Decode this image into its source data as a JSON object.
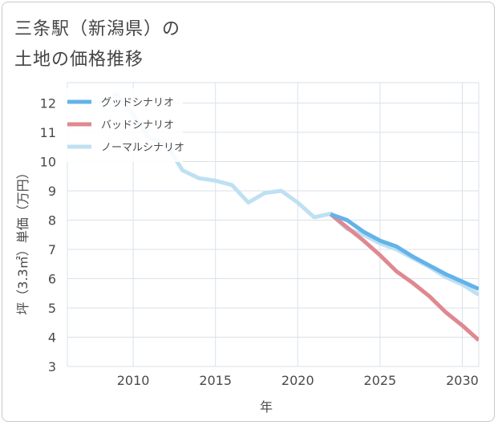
{
  "header": {
    "title_line1": "三条駅（新潟県）の",
    "title_line2": "土地の価格推移"
  },
  "chart_data": {
    "type": "line",
    "title": "三条駅（新潟県）の土地の価格推移",
    "xlabel": "年",
    "ylabel": "坪（3.3㎡）単価（万円）",
    "xlim": [
      2006,
      2031
    ],
    "ylim": [
      3,
      12.7
    ],
    "xticks": [
      2010,
      2015,
      2020,
      2025,
      2030
    ],
    "yticks": [
      3,
      4,
      5,
      6,
      7,
      8,
      9,
      10,
      11,
      12
    ],
    "grid": true,
    "legend_position": "top-left",
    "series": [
      {
        "name": "グッドシナリオ",
        "color": "#63b3e8",
        "x": [
          2022,
          2023,
          2024,
          2025,
          2026,
          2027,
          2028,
          2029,
          2030,
          2031
        ],
        "y": [
          8.2,
          8.0,
          7.6,
          7.3,
          7.1,
          6.75,
          6.45,
          6.15,
          5.9,
          5.65
        ]
      },
      {
        "name": "バッドシナリオ",
        "color": "#e08890",
        "x": [
          2022,
          2023,
          2024,
          2025,
          2026,
          2027,
          2028,
          2029,
          2030,
          2031
        ],
        "y": [
          8.2,
          7.75,
          7.3,
          6.8,
          6.25,
          5.85,
          5.4,
          4.85,
          4.4,
          3.9
        ]
      },
      {
        "name": "ノーマルシナリオ",
        "color": "#bfe0f2",
        "x": [
          2008,
          2009,
          2010,
          2011,
          2012,
          2013,
          2014,
          2015,
          2016,
          2017,
          2018,
          2019,
          2020,
          2021,
          2022,
          2023,
          2024,
          2025,
          2026,
          2027,
          2028,
          2029,
          2030,
          2031
        ],
        "y": [
          12.0,
          12.3,
          11.6,
          10.8,
          10.6,
          9.7,
          9.43,
          9.35,
          9.2,
          8.6,
          8.93,
          9.0,
          8.6,
          8.1,
          8.22,
          7.7,
          7.5,
          7.2,
          7.0,
          6.7,
          6.4,
          6.05,
          5.8,
          5.45
        ]
      }
    ]
  }
}
